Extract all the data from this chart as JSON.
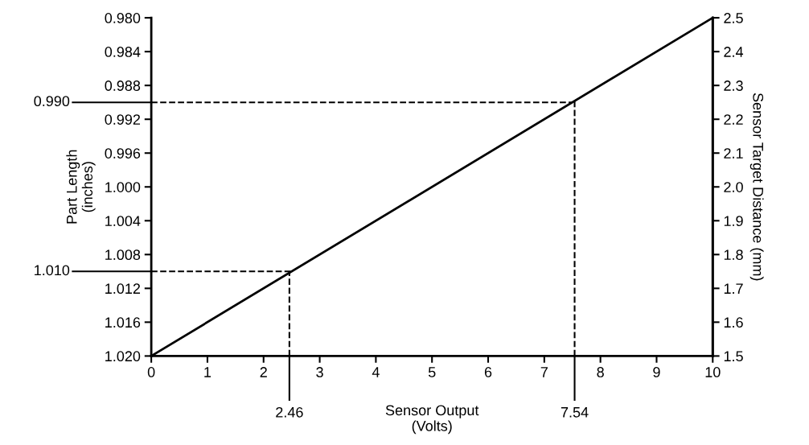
{
  "chart_data": {
    "type": "line",
    "xlabel": "Sensor Output\n(Volts)",
    "ylabel": "Part Length\n(inches)",
    "y2label": "Sensor Target Distance (mm)",
    "x": [
      0,
      10
    ],
    "series": [
      {
        "color": "#000000",
        "values": [
          1.02,
          0.98
        ]
      }
    ],
    "xlim": [
      0,
      10
    ],
    "xticks": [
      0,
      1,
      2,
      3,
      4,
      5,
      6,
      7,
      8,
      9,
      10
    ],
    "ylim": [
      1.02,
      0.98
    ],
    "yticks": [
      {
        "value": 0.98,
        "label": "0.980"
      },
      {
        "value": 0.984,
        "label": "0.984"
      },
      {
        "value": 0.988,
        "label": "0.988"
      },
      {
        "value": 0.992,
        "label": "0.992"
      },
      {
        "value": 0.996,
        "label": "0.996"
      },
      {
        "value": 1.0,
        "label": "1.000"
      },
      {
        "value": 1.004,
        "label": "1.004"
      },
      {
        "value": 1.008,
        "label": "1.008"
      },
      {
        "value": 1.012,
        "label": "1.012"
      },
      {
        "value": 1.016,
        "label": "1.016"
      },
      {
        "value": 1.02,
        "label": "1.020"
      }
    ],
    "y2lim": [
      1.5,
      2.5
    ],
    "y2ticks": [
      1.5,
      1.6,
      1.7,
      1.8,
      1.9,
      {
        "value": 2.0,
        "label": "2.0"
      },
      2.1,
      2.2,
      2.3,
      2.4,
      2.5
    ],
    "ref_lines": [
      {
        "axis": "x",
        "value": 2.46,
        "label": "2.46",
        "line_style": "dashed",
        "color": "#000000"
      },
      {
        "axis": "x",
        "value": 7.54,
        "label": "7.54",
        "line_style": "dashed",
        "color": "#000000"
      },
      {
        "axis": "y",
        "value": 1.01,
        "label": "1.010",
        "line_style": "dashed",
        "color": "#000000"
      },
      {
        "axis": "y",
        "value": 0.99,
        "label": "0.990",
        "line_style": "dashed",
        "color": "#000000"
      }
    ],
    "grid": false,
    "marker": "none",
    "line_style": "solid"
  }
}
